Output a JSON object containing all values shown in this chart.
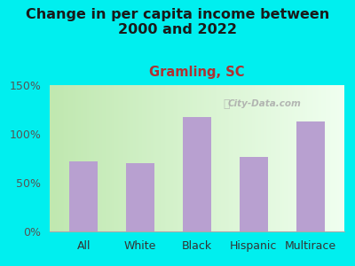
{
  "title": "Change in per capita income between\n2000 and 2022",
  "subtitle": "Gramling, SC",
  "categories": [
    "All",
    "White",
    "Black",
    "Hispanic",
    "Multirace"
  ],
  "values": [
    72,
    70,
    117,
    76,
    113
  ],
  "bar_color": "#b8a0d0",
  "background_outer": "#00efef",
  "background_plot_left": "#c8eec0",
  "background_plot_right": "#f5fff5",
  "title_color": "#1a1a1a",
  "subtitle_color": "#b03030",
  "ytick_color": "#555555",
  "xtick_color": "#333333",
  "ylim": [
    0,
    150
  ],
  "yticks": [
    0,
    50,
    100,
    150
  ],
  "watermark": "City-Data.com",
  "title_fontsize": 11.5,
  "subtitle_fontsize": 10.5,
  "tick_fontsize": 9
}
